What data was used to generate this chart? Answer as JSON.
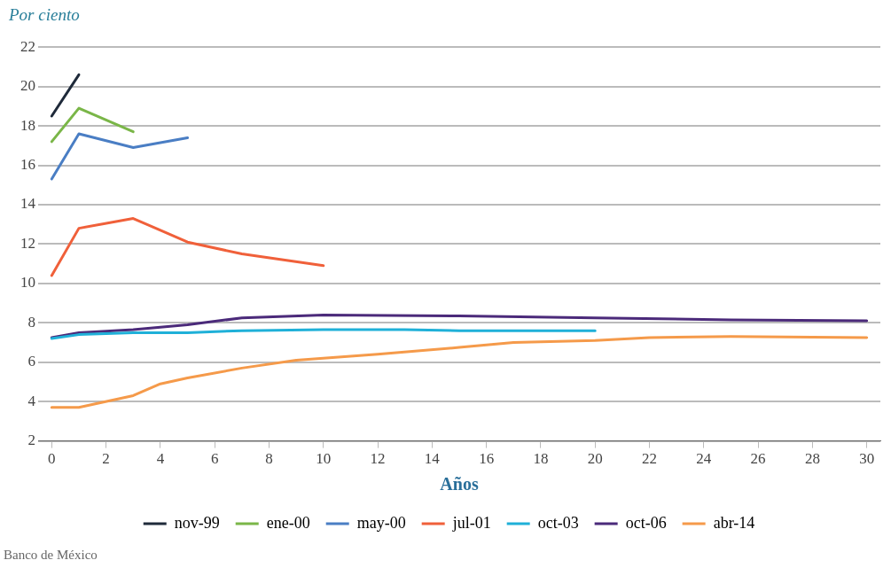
{
  "chart_data": {
    "type": "line",
    "ylabel": "Por ciento",
    "xlabel": "Años",
    "annotations": [
      "Banco de México"
    ],
    "xlim": [
      -0.5,
      30.5
    ],
    "xticks": [
      0,
      2,
      4,
      6,
      8,
      10,
      12,
      14,
      16,
      18,
      20,
      22,
      24,
      26,
      28,
      30
    ],
    "ylim": [
      2,
      22
    ],
    "yticks": [
      2,
      4,
      6,
      8,
      10,
      12,
      14,
      16,
      18,
      20,
      22
    ],
    "grid": "y",
    "legend": "bottom",
    "marker": "none",
    "line_style": "solid",
    "series": [
      {
        "name": "nov-99",
        "color": "#1f2a3a",
        "x": [
          0,
          1
        ],
        "values": [
          18.5,
          20.6
        ]
      },
      {
        "name": "ene-00",
        "color": "#7ab648",
        "x": [
          0,
          1,
          3
        ],
        "values": [
          17.2,
          18.9,
          17.7
        ]
      },
      {
        "name": "may-00",
        "color": "#4a7ec4",
        "x": [
          0,
          1,
          3,
          5
        ],
        "values": [
          15.3,
          17.6,
          16.9,
          17.4
        ]
      },
      {
        "name": "jul-01",
        "color": "#f0603a",
        "x": [
          0,
          1,
          3,
          5,
          7,
          10
        ],
        "values": [
          10.4,
          12.8,
          13.3,
          12.1,
          11.5,
          10.9
        ]
      },
      {
        "name": "oct-03",
        "color": "#1fb0d8",
        "x": [
          0,
          1,
          3,
          5,
          7,
          10,
          13,
          15,
          20
        ],
        "values": [
          7.2,
          7.4,
          7.5,
          7.5,
          7.6,
          7.65,
          7.65,
          7.6,
          7.6
        ]
      },
      {
        "name": "oct-06",
        "color": "#4b2a7a",
        "x": [
          0,
          1,
          3,
          5,
          7,
          10,
          15,
          20,
          25,
          30
        ],
        "values": [
          7.25,
          7.5,
          7.65,
          7.9,
          8.25,
          8.4,
          8.35,
          8.25,
          8.15,
          8.1
        ]
      },
      {
        "name": "abr-14",
        "color": "#f59a4a",
        "x": [
          0,
          1,
          3,
          4,
          5,
          7,
          9,
          10,
          12,
          15,
          17,
          20,
          22,
          25,
          30
        ],
        "values": [
          3.7,
          3.7,
          4.3,
          4.9,
          5.2,
          5.7,
          6.1,
          6.2,
          6.4,
          6.75,
          7.0,
          7.1,
          7.25,
          7.3,
          7.25
        ]
      }
    ]
  }
}
